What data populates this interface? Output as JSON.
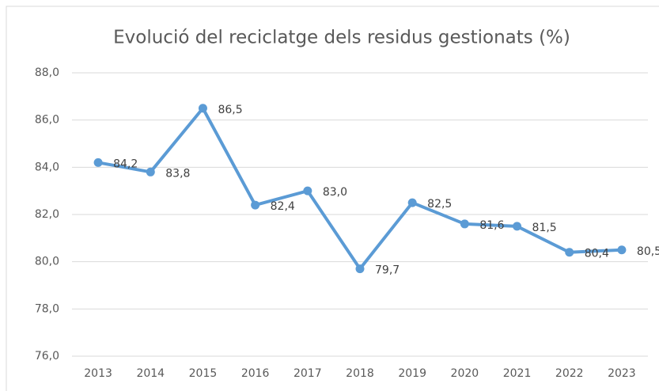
{
  "chart_data": {
    "type": "line",
    "title": "Evolució del reciclatge dels residus gestionats (%)",
    "categories": [
      "2013",
      "2014",
      "2015",
      "2016",
      "2017",
      "2018",
      "2019",
      "2020",
      "2021",
      "2022",
      "2023"
    ],
    "values": [
      84.2,
      83.8,
      86.5,
      82.4,
      83.0,
      79.7,
      82.5,
      81.6,
      81.5,
      80.4,
      80.5
    ],
    "value_labels": [
      "84,2",
      "83,8",
      "86,5",
      "82,4",
      "83,0",
      "79,7",
      "82,5",
      "81,6",
      "81,5",
      "80,4",
      "80,5"
    ],
    "color": "#5b9bd5",
    "ylim": [
      76,
      88
    ],
    "yticks": [
      {
        "value": 76,
        "label": "76,0"
      },
      {
        "value": 78,
        "label": "78,0"
      },
      {
        "value": 80,
        "label": "80,0"
      },
      {
        "value": 82,
        "label": "82,0"
      },
      {
        "value": 84,
        "label": "84,0"
      },
      {
        "value": 86,
        "label": "86,0"
      },
      {
        "value": 88,
        "label": "88,0"
      }
    ],
    "grid": true
  }
}
